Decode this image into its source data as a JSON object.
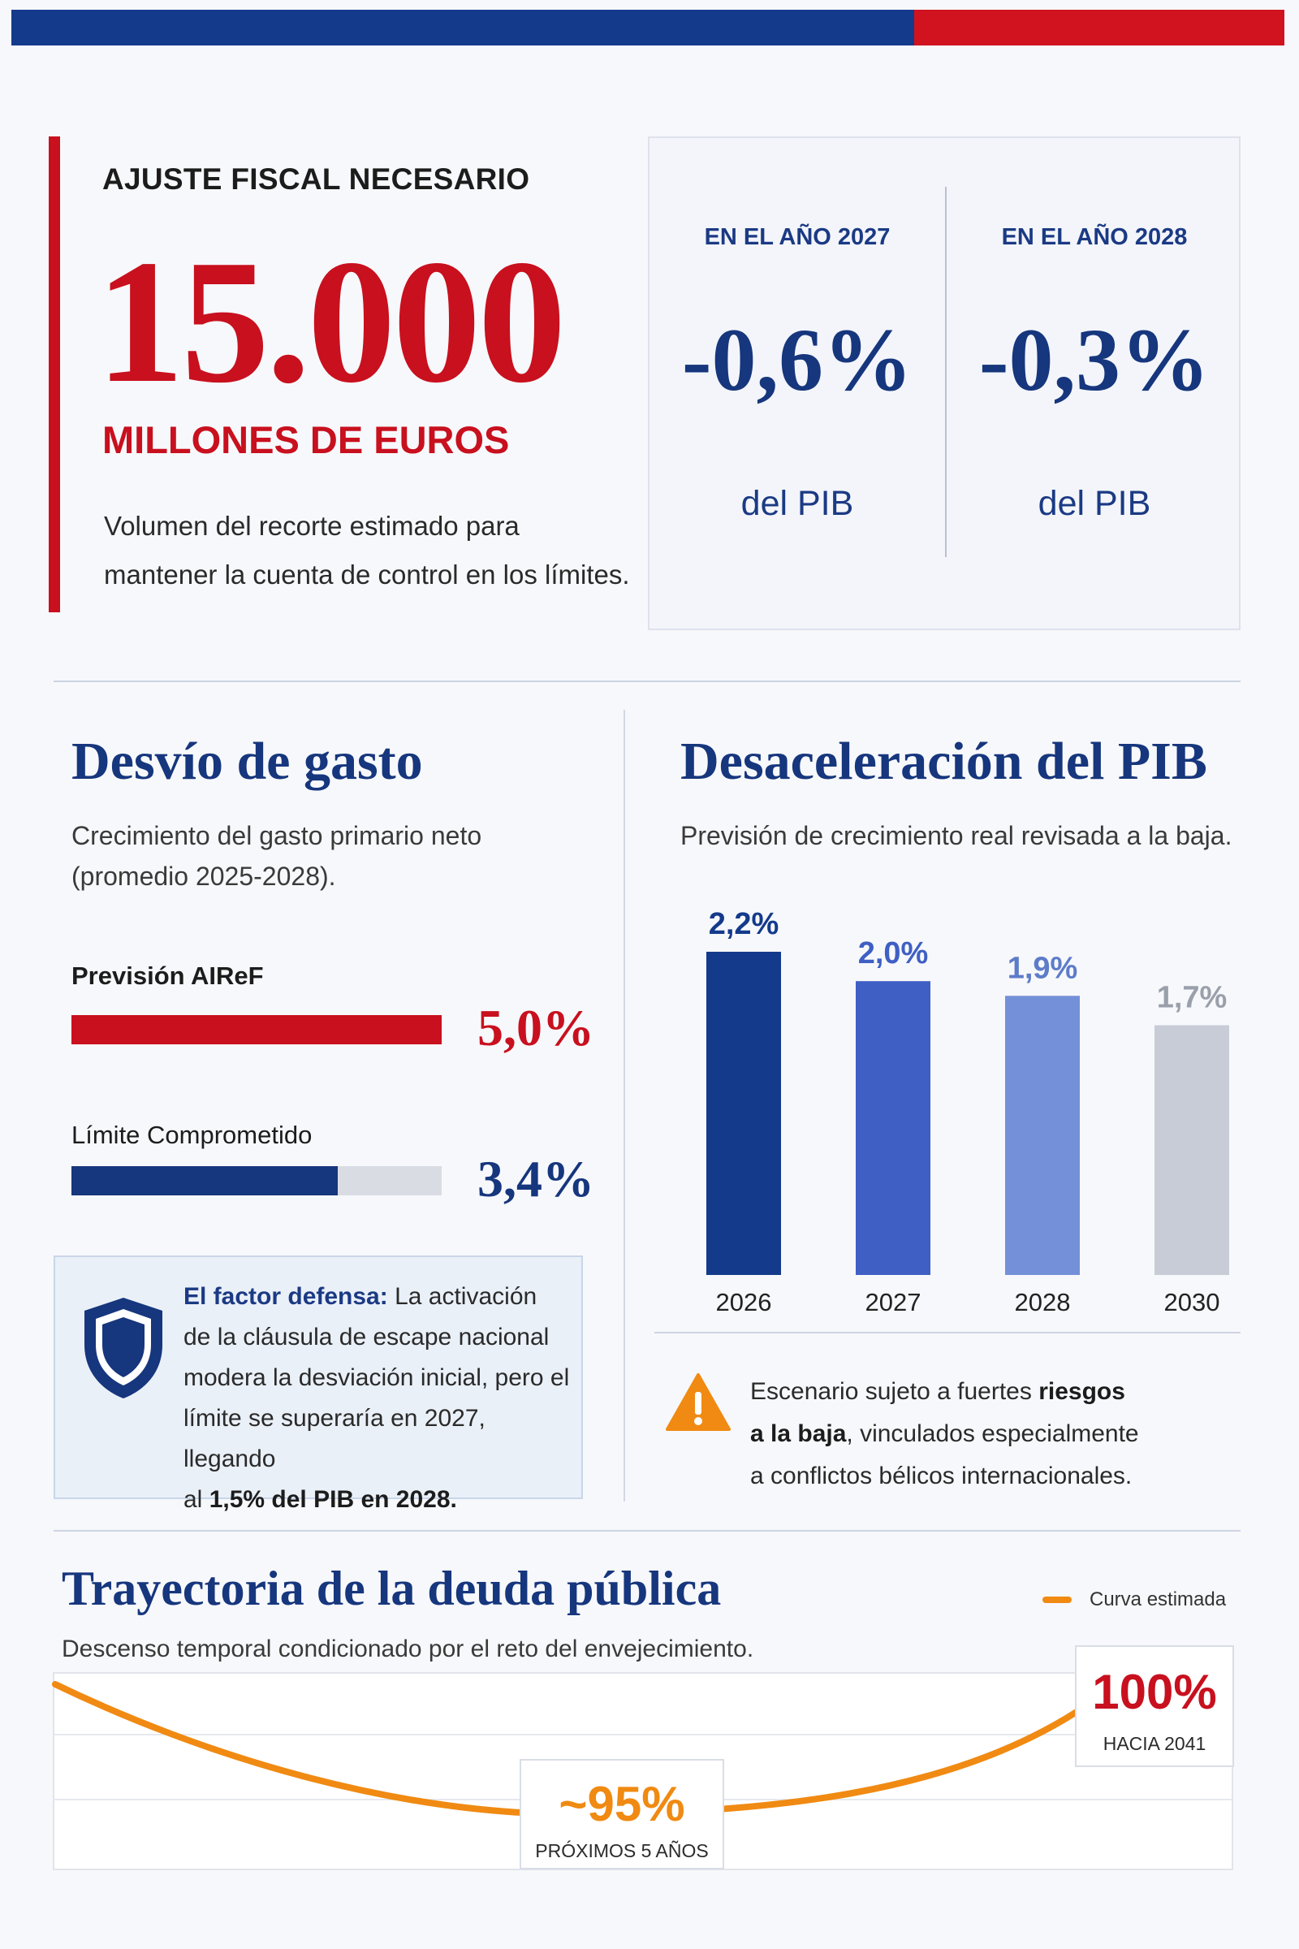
{
  "colors": {
    "navy": "#16367d",
    "red": "#c8101e",
    "orange": "#f08a12",
    "grey_bar": "#d9dce3"
  },
  "header": {
    "kicker": "AJUSTE FISCAL NECESARIO",
    "big_number": "15.000",
    "big_unit": "MILLONES DE EUROS",
    "description_line1": "Volumen del recorte estimado para",
    "description_line2": "mantener la cuenta de control en los límites."
  },
  "pib_card": {
    "col1": {
      "label": "EN EL AÑO 2027",
      "value": "-0,6%",
      "sub": "del PIB"
    },
    "col2": {
      "label": "EN EL AÑO 2028",
      "value": "-0,3%",
      "sub": "del PIB"
    }
  },
  "spending": {
    "title": "Desvío de gasto",
    "subtitle_line1": "Crecimiento del gasto primario neto",
    "subtitle_line2": "(promedio 2025-2028).",
    "bars": [
      {
        "label": "Previsión AIReF",
        "value_text": "5,0%",
        "fraction": 1.0,
        "color": "#c8101e"
      },
      {
        "label": "Límite Comprometido",
        "value_text": "3,4%",
        "fraction": 0.72,
        "color": "#16367d"
      }
    ],
    "defense": {
      "lead": "El factor defensa:",
      "text1": "La activación",
      "text2": "de la cláusula de escape nacional",
      "text3": "modera la desviación inicial, pero el",
      "text4": "límite se superaría en 2027, llegando",
      "text5_pre": "al",
      "text5_strong": "1,5% del PIB en 2028.",
      "icon": "shield-icon"
    }
  },
  "gdp": {
    "title": "Desaceleración del PIB",
    "subtitle": "Previsión de crecimiento real revisada a la baja.",
    "risk": {
      "line1_pre": "Escenario sujeto a fuertes",
      "line1_strong": "riesgos",
      "line2_strong": "a la baja",
      "line2_post": ", vinculados especialmente",
      "line3": "a conflictos bélicos internacionales.",
      "icon": "warning-icon"
    }
  },
  "chart_data": {
    "type": "bar",
    "categories": [
      "2026",
      "2027",
      "2028",
      "2030"
    ],
    "values": [
      2.2,
      2.0,
      1.9,
      1.7
    ],
    "value_labels": [
      "2,2%",
      "2,0%",
      "1,9%",
      "1,7%"
    ],
    "colors": [
      "#143a8c",
      "#3f5fc4",
      "#7490d8",
      "#c8ccd6"
    ],
    "label_colors": [
      "#143a8c",
      "#3f5fc4",
      "#5d7cc9",
      "#9aa0ab"
    ],
    "title": "",
    "xlabel": "",
    "ylabel": "",
    "ylim": [
      0,
      2.2
    ]
  },
  "debt": {
    "title": "Trayectoria de la deuda pública",
    "subtitle": "Descenso temporal condicionado por el reto del envejecimiento.",
    "legend": "Curva estimada",
    "low": {
      "value": "~95%",
      "caption": "PRÓXIMOS 5 AÑOS"
    },
    "high": {
      "value": "100%",
      "caption": "HACIA 2041"
    }
  }
}
